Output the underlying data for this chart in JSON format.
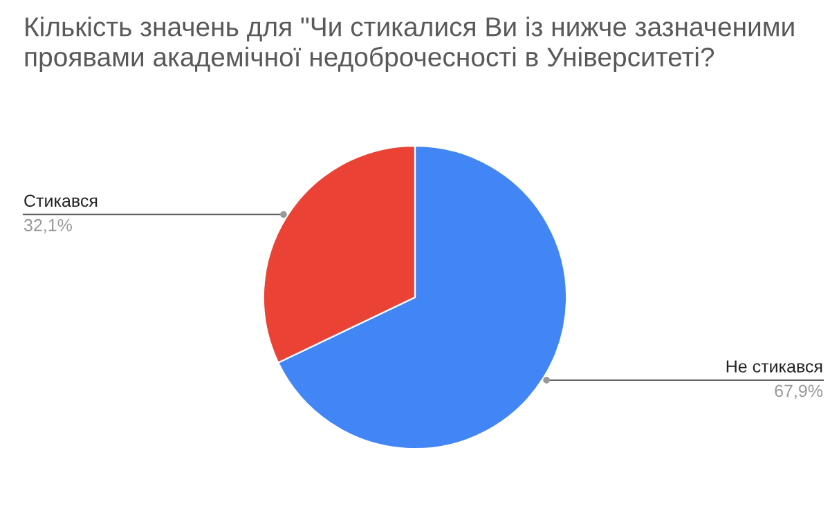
{
  "chart_data": {
    "type": "pie",
    "title": "Кількість значень для \"Чи стикалися Ви із нижче зазначеними\nпроявами академічної недоброчесності в Університеті?",
    "categories": [
      "Не стикався",
      "Стикався"
    ],
    "values": [
      67.9,
      32.1
    ],
    "colors": [
      "#4285f4",
      "#ea4335"
    ],
    "value_labels": [
      "67,9%",
      "32,1%"
    ]
  }
}
